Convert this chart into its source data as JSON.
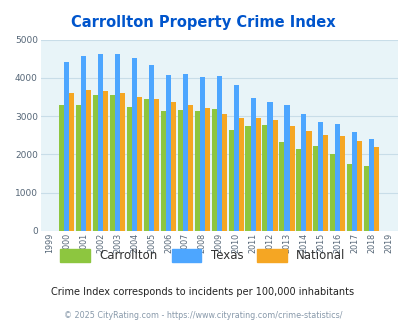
{
  "title": "Carrollton Property Crime Index",
  "years": [
    "1999",
    "2000",
    "2001",
    "2002",
    "2003",
    "2004",
    "2005",
    "2006",
    "2007",
    "2008",
    "2009",
    "2010",
    "2011",
    "2012",
    "2013",
    "2014",
    "2015",
    "2016",
    "2017",
    "2018",
    "2019"
  ],
  "carrollton": [
    null,
    3300,
    3280,
    3560,
    3560,
    3250,
    3450,
    3130,
    3160,
    3140,
    3200,
    2650,
    2730,
    2770,
    2330,
    2150,
    2210,
    2000,
    1750,
    1700,
    null
  ],
  "texas": [
    null,
    4420,
    4580,
    4620,
    4630,
    4520,
    4340,
    4080,
    4100,
    4010,
    4060,
    3810,
    3480,
    3380,
    3280,
    3060,
    2860,
    2800,
    2590,
    2400,
    null
  ],
  "national": [
    null,
    3610,
    3680,
    3660,
    3600,
    3510,
    3450,
    3360,
    3280,
    3220,
    3050,
    2960,
    2950,
    2900,
    2750,
    2600,
    2500,
    2470,
    2360,
    2200,
    null
  ],
  "bar_colors": {
    "carrollton": "#8dc63f",
    "texas": "#4da6ff",
    "national": "#f5a623"
  },
  "ylim": [
    0,
    5000
  ],
  "yticks": [
    0,
    1000,
    2000,
    3000,
    4000,
    5000
  ],
  "bg_color": "#e8f4f8",
  "grid_color": "#c8dde8",
  "title_color": "#0055cc",
  "subtitle": "Crime Index corresponds to incidents per 100,000 inhabitants",
  "footer": "© 2025 CityRating.com - https://www.cityrating.com/crime-statistics/",
  "subtitle_color": "#222222",
  "footer_color": "#8899aa"
}
